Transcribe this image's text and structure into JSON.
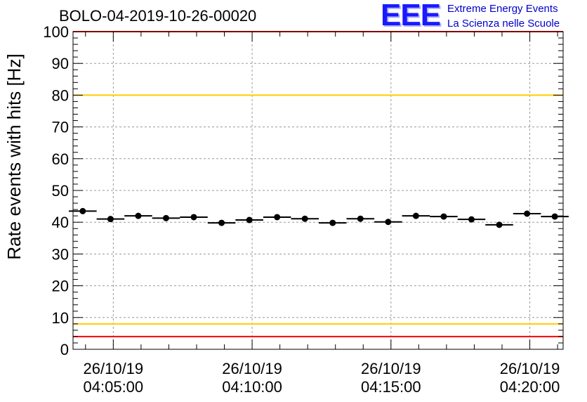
{
  "title": "BOLO-04-2019-10-26-00020",
  "logo": {
    "mark": "EEE",
    "line1": "Extreme Energy Events",
    "line2": "La Scienza nelle Scuole"
  },
  "colors": {
    "data": "#000000",
    "grid": "#9a9a9a",
    "red_threshold": "#ff0000",
    "yellow_threshold": "#ffcc00",
    "logo": "#0000cc"
  },
  "chart_data": {
    "type": "scatter",
    "title": "BOLO-04-2019-10-26-00020",
    "ylabel": "Rate events with hits [Hz]",
    "xlabel": "",
    "ylim": [
      0,
      100
    ],
    "yticks": [
      0,
      10,
      20,
      30,
      40,
      50,
      60,
      70,
      80,
      90,
      100
    ],
    "xlim_minutes": [
      3.55,
      21.2
    ],
    "xtick_labels": [
      {
        "minute": 5,
        "date": "26/10/19",
        "time": "04:05:00"
      },
      {
        "minute": 10,
        "date": "26/10/19",
        "time": "04:10:00"
      },
      {
        "minute": 15,
        "date": "26/10/19",
        "time": "04:15:00"
      },
      {
        "minute": 20,
        "date": "26/10/19",
        "time": "04:20:00"
      }
    ],
    "bin_width_minutes": 1,
    "x_minutes": [
      3.9,
      4.9,
      5.9,
      6.9,
      7.9,
      8.9,
      9.9,
      10.9,
      11.9,
      12.9,
      13.9,
      14.9,
      15.9,
      16.9,
      17.9,
      18.9,
      19.9,
      20.9
    ],
    "values": [
      43.5,
      41.0,
      42.0,
      41.3,
      41.6,
      39.8,
      40.7,
      41.6,
      41.1,
      39.8,
      41.1,
      40.1,
      42.0,
      41.8,
      40.9,
      39.2,
      42.7,
      41.8
    ],
    "thresholds": [
      {
        "value": 100,
        "color": "red"
      },
      {
        "value": 80,
        "color": "yellow"
      },
      {
        "value": 8,
        "color": "yellow"
      },
      {
        "value": 4,
        "color": "red"
      }
    ],
    "grid": true
  }
}
